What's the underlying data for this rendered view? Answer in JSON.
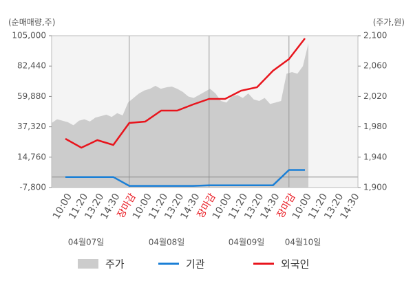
{
  "chart_data": {
    "type": "line",
    "y_axis_label": "(순매매량,주)",
    "y2_axis_label": "(주가,원)",
    "categories": [
      "10:00",
      "11:20",
      "13:20",
      "14:30",
      "장마감",
      "10:00",
      "11:20",
      "13:20",
      "14:30",
      "장마감",
      "10:00",
      "11:20",
      "13:20",
      "14:30",
      "장마감",
      "10:00",
      "11:20",
      "13:20",
      "14:30"
    ],
    "dates": [
      "04월07일",
      "04월08일",
      "04월09일",
      "04월10일"
    ],
    "ylim": [
      -7800,
      105000
    ],
    "yticks": [
      {
        "value": -7800,
        "label": "-7,800"
      },
      {
        "value": 14760,
        "label": "14,760"
      },
      {
        "value": 37320,
        "label": "37,320"
      },
      {
        "value": 59880,
        "label": "59,880"
      },
      {
        "value": 82440,
        "label": "82,440"
      },
      {
        "value": 105000,
        "label": "105,000"
      }
    ],
    "y2lim": [
      1900,
      2100
    ],
    "y2ticks": [
      {
        "value": 1900,
        "label": "1,900"
      },
      {
        "value": 1940,
        "label": "1,940"
      },
      {
        "value": 1980,
        "label": "1,980"
      },
      {
        "value": 2020,
        "label": "2,020"
      },
      {
        "value": 2060,
        "label": "2,060"
      },
      {
        "value": 2100,
        "label": "2,100"
      }
    ],
    "price": {
      "name": "주가",
      "color": "#cccccc",
      "axis": "y2",
      "values": [
        1985,
        1990,
        1988,
        1986,
        1982,
        1988,
        1990,
        1987,
        1992,
        1994,
        1996,
        1993,
        1998,
        1995,
        2012,
        2018,
        2024,
        2028,
        2030,
        2034,
        2030,
        2032,
        2033,
        2030,
        2026,
        2020,
        2018,
        2022,
        2026,
        2030,
        2024,
        2014,
        2012,
        2020,
        2022,
        2018,
        2024,
        2016,
        2014,
        2018,
        2010,
        2012,
        2014,
        2050,
        2052,
        2050,
        2060,
        2090
      ]
    },
    "series": [
      {
        "name": "기관",
        "color": "#1a7fd6",
        "values": [
          0,
          0,
          0,
          0,
          -6600,
          -6600,
          -6600,
          -6600,
          -6600,
          -6100,
          -6100,
          -6100,
          -6100,
          -6100,
          5200,
          5200,
          null,
          null,
          null
        ]
      },
      {
        "name": "외국인",
        "color": "#e8141c",
        "values": [
          28440,
          21800,
          27400,
          23850,
          40200,
          41200,
          49370,
          49370,
          53960,
          58040,
          58040,
          64170,
          66720,
          78970,
          87650,
          103000,
          null,
          null,
          null
        ]
      }
    ]
  }
}
